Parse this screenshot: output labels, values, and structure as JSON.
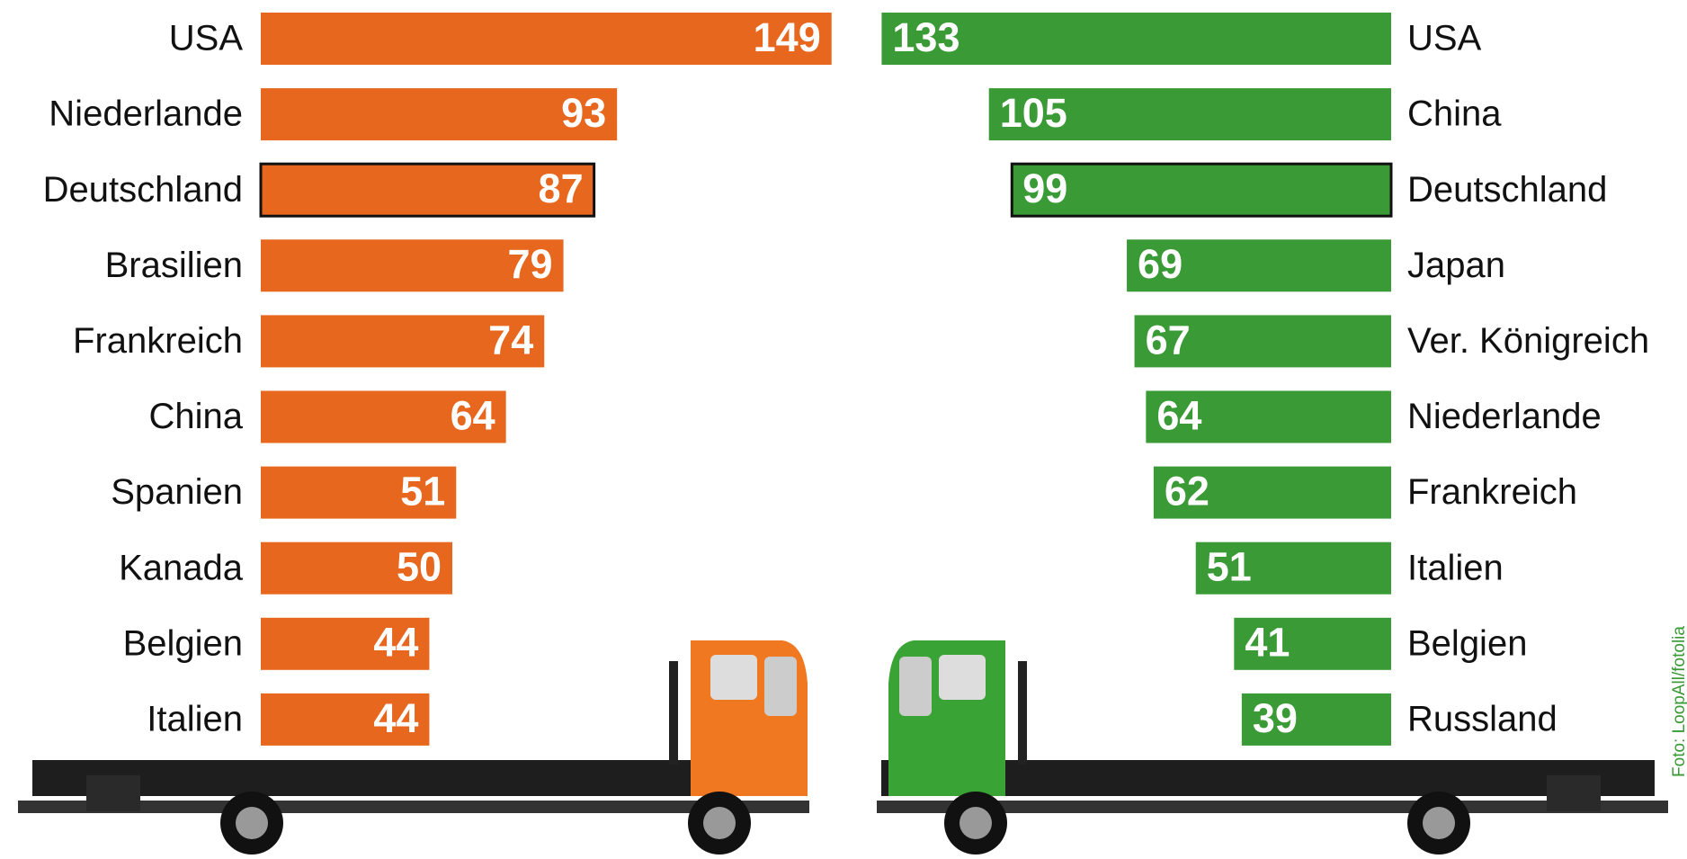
{
  "chart_data": [
    {
      "type": "hbar",
      "side": "left",
      "color": "#e8671e",
      "highlight_index": 2,
      "categories": [
        "USA",
        "Niederlande",
        "Deutschland",
        "Brasilien",
        "Frankreich",
        "China",
        "Spanien",
        "Kanada",
        "Belgien",
        "Italien"
      ],
      "values": [
        149,
        93,
        87,
        79,
        74,
        64,
        51,
        50,
        44,
        44
      ]
    },
    {
      "type": "hbar",
      "side": "right",
      "color": "#3a9a35",
      "highlight_index": 2,
      "categories": [
        "USA",
        "China",
        "Deutschland",
        "Japan",
        "Ver. Königreich",
        "Niederlande",
        "Frankreich",
        "Italien",
        "Belgien",
        "Russland"
      ],
      "values": [
        133,
        105,
        99,
        69,
        67,
        64,
        62,
        51,
        41,
        39
      ]
    }
  ],
  "credit": "Foto: LoopAll/fotolia"
}
